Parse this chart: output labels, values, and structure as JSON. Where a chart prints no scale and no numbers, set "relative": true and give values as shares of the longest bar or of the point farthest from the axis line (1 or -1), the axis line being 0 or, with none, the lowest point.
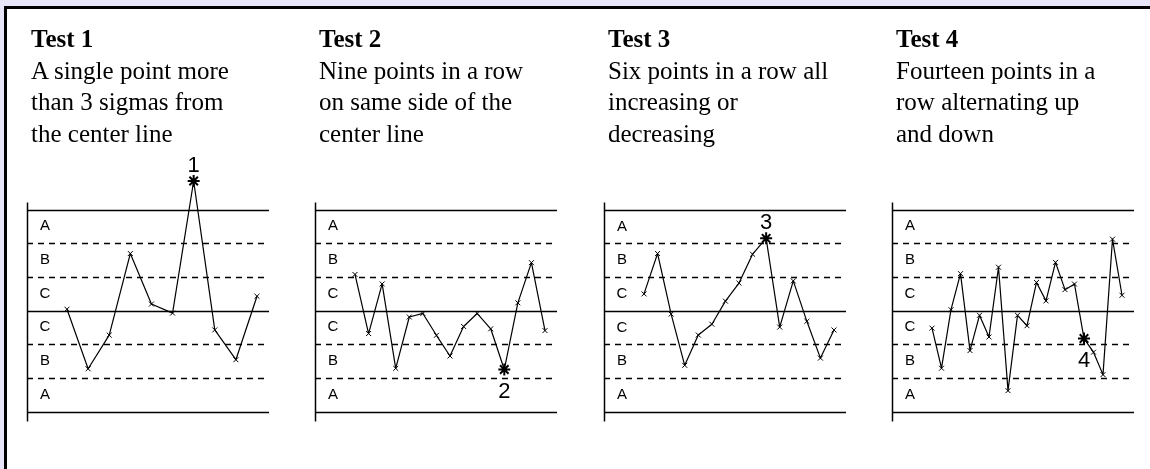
{
  "chart_data": [
    {
      "type": "line",
      "title": "Test 1",
      "subtitle": "A single point more than 3 sigmas from the center line",
      "relative": true,
      "marker": "cross",
      "categories": [
        null,
        null,
        null,
        null,
        null,
        null,
        null,
        null,
        null,
        null
      ],
      "series": [
        {
          "color": "#000000",
          "values": [
            0.01,
            -0.45,
            -0.19,
            0.44,
            0.05,
            -0.02,
            1,
            -0.15,
            -0.38,
            0.11
          ]
        }
      ],
      "ref_lines": [
        {
          "axis": "y",
          "value": 0.78,
          "color": "#000000"
        },
        {
          "axis": "y",
          "value": 0.52,
          "color": "#000000",
          "line_style": "dashed"
        },
        {
          "axis": "y",
          "value": 0.26,
          "color": "#000000",
          "line_style": "dashed"
        },
        {
          "axis": "y",
          "value": 0,
          "color": "#000000"
        },
        {
          "axis": "y",
          "value": -0.26,
          "color": "#000000",
          "line_style": "dashed"
        },
        {
          "axis": "y",
          "value": -0.52,
          "color": "#000000",
          "line_style": "dashed"
        },
        {
          "axis": "y",
          "value": -0.78,
          "color": "#000000"
        }
      ],
      "annotations": [
        "A",
        "B",
        "C",
        "C",
        "B",
        "A",
        {
          "text": "1",
          "y": 1
        }
      ]
    },
    {
      "type": "line",
      "title": "Test 2",
      "subtitle": "Nine points in a row on same side of the center line",
      "relative": true,
      "marker": "cross",
      "categories": [
        null,
        null,
        null,
        null,
        null,
        null,
        null,
        null,
        null,
        null,
        null,
        null,
        null,
        null,
        null
      ],
      "series": [
        {
          "color": "#000000",
          "values": [
            0.61,
            -0.39,
            0.45,
            -0.98,
            -0.11,
            -0.05,
            -0.42,
            -0.77,
            -0.27,
            -0.05,
            -0.31,
            -1,
            0.13,
            0.81,
            -0.34
          ]
        }
      ],
      "ref_lines": [
        {
          "axis": "y",
          "value": 1.71,
          "color": "#000000"
        },
        {
          "axis": "y",
          "value": 1.14,
          "color": "#000000",
          "line_style": "dashed"
        },
        {
          "axis": "y",
          "value": 0.57,
          "color": "#000000",
          "line_style": "dashed"
        },
        {
          "axis": "y",
          "value": 0,
          "color": "#000000"
        },
        {
          "axis": "y",
          "value": -0.57,
          "color": "#000000",
          "line_style": "dashed"
        },
        {
          "axis": "y",
          "value": -1.14,
          "color": "#000000",
          "line_style": "dashed"
        },
        {
          "axis": "y",
          "value": -1.71,
          "color": "#000000"
        }
      ],
      "annotations": [
        "A",
        "B",
        "C",
        "C",
        "B",
        "A",
        {
          "text": "2",
          "y": -1
        }
      ]
    },
    {
      "type": "line",
      "title": "Test 3",
      "subtitle": "Six points in a row all increasing or decreasing",
      "relative": true,
      "marker": "cross",
      "categories": [
        null,
        null,
        null,
        null,
        null,
        null,
        null,
        null,
        null,
        null,
        null,
        null,
        null,
        null,
        null
      ],
      "series": [
        {
          "color": "#000000",
          "values": [
            0.23,
            0.79,
            -0.05,
            -0.76,
            -0.34,
            -0.19,
            0.13,
            0.38,
            0.78,
            1,
            -0.23,
            0.41,
            -0.15,
            -0.66,
            -0.27
          ]
        }
      ],
      "ref_lines": [
        {
          "axis": "y",
          "value": 1.4,
          "color": "#000000"
        },
        {
          "axis": "y",
          "value": 0.93,
          "color": "#000000",
          "line_style": "dashed"
        },
        {
          "axis": "y",
          "value": 0.47,
          "color": "#000000",
          "line_style": "dashed"
        },
        {
          "axis": "y",
          "value": 0,
          "color": "#000000"
        },
        {
          "axis": "y",
          "value": -0.47,
          "color": "#000000",
          "line_style": "dashed"
        },
        {
          "axis": "y",
          "value": -0.93,
          "color": "#000000",
          "line_style": "dashed"
        },
        {
          "axis": "y",
          "value": -1.4,
          "color": "#000000"
        }
      ],
      "annotations": [
        "A",
        "B",
        "C",
        "C",
        "B",
        "A",
        {
          "text": "3",
          "y": 1
        }
      ]
    },
    {
      "type": "line",
      "title": "Test 4",
      "subtitle": "Fourteen points in a row alternating up and down",
      "relative": true,
      "marker": "cross",
      "categories": [
        null,
        null,
        null,
        null,
        null,
        null,
        null,
        null,
        null,
        null,
        null,
        null,
        null,
        null,
        null,
        null,
        null,
        null,
        null,
        null,
        null
      ],
      "series": [
        {
          "color": "#000000",
          "values": [
            -0.22,
            -0.72,
            0.01,
            0.46,
            -0.5,
            -0.06,
            -0.33,
            0.54,
            -1,
            -0.06,
            -0.19,
            0.35,
            0.12,
            0.6,
            0.26,
            0.33,
            -0.35,
            -0.52,
            -0.8,
            0.89,
            0.19
          ]
        }
      ],
      "ref_lines": [
        {
          "axis": "y",
          "value": 1.26,
          "color": "#000000"
        },
        {
          "axis": "y",
          "value": 0.84,
          "color": "#000000",
          "line_style": "dashed"
        },
        {
          "axis": "y",
          "value": 0.42,
          "color": "#000000",
          "line_style": "dashed"
        },
        {
          "axis": "y",
          "value": 0,
          "color": "#000000"
        },
        {
          "axis": "y",
          "value": -0.42,
          "color": "#000000",
          "line_style": "dashed"
        },
        {
          "axis": "y",
          "value": -0.84,
          "color": "#000000",
          "line_style": "dashed"
        },
        {
          "axis": "y",
          "value": -1.26,
          "color": "#000000"
        }
      ],
      "annotations": [
        "A",
        "B",
        "C",
        "C",
        "B",
        "A",
        {
          "text": "4",
          "y": -0.35
        }
      ]
    }
  ]
}
